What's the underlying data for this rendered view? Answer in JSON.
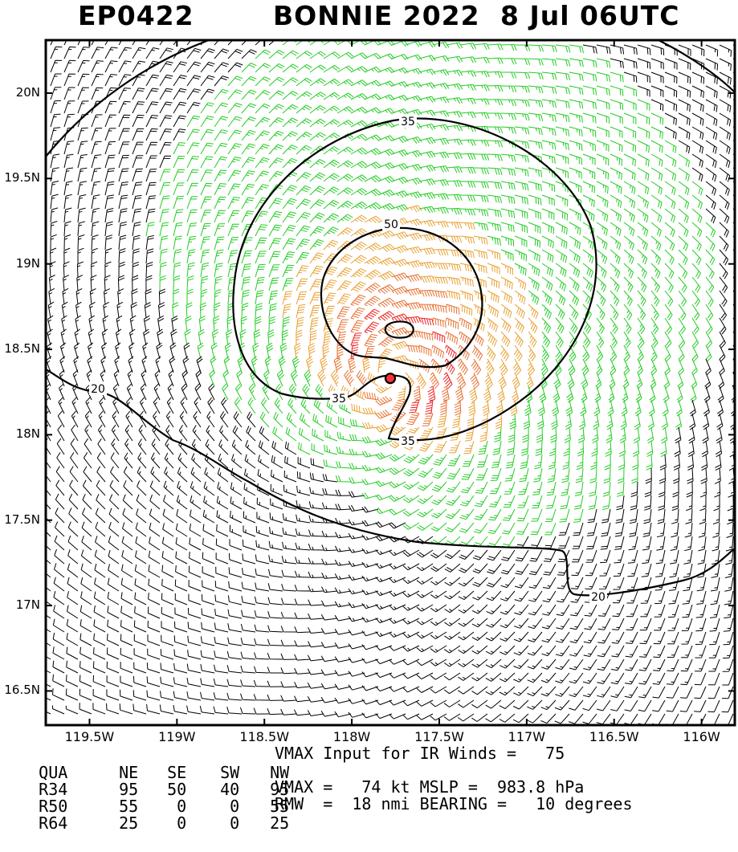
{
  "title": {
    "storm_id": "EP0422",
    "storm_name_year": "BONNIE 2022",
    "datetime": "8 Jul 06UTC"
  },
  "map": {
    "lat_labels": [
      "20N",
      "19.5N",
      "19N",
      "18.5N",
      "18N",
      "17.5N",
      "17N",
      "16.5N"
    ],
    "lon_labels": [
      "119.5W",
      "119W",
      "118.5W",
      "118W",
      "117.5W",
      "117W",
      "116.5W",
      "116W"
    ],
    "contour_labels": [
      "35",
      "50",
      "35",
      "35",
      "20",
      "20"
    ],
    "center_lat": 18.33,
    "center_lon": -117.78,
    "wind_colors": {
      "lt20": "#000000",
      "20to35": "#22cc22",
      "35to50": "#e8a030",
      "50to64": "#e87030",
      "ge64": "#ee2222"
    },
    "center_color": "#ff3333"
  },
  "table": {
    "header": [
      "QUA",
      "NE",
      "SE",
      "SW",
      "NW"
    ],
    "rows": [
      [
        "R34",
        "95",
        "50",
        "40",
        "95"
      ],
      [
        "R50",
        "55",
        "0",
        "0",
        "55"
      ],
      [
        "R64",
        "25",
        "0",
        "0",
        "25"
      ]
    ]
  },
  "summary": {
    "line1": "VMAX Input for IR Winds =   75",
    "line2": "VMAX =   74 kt MSLP =  983.8 hPa",
    "line3": "RMW  =  18 nmi BEARING =   10 degrees"
  }
}
